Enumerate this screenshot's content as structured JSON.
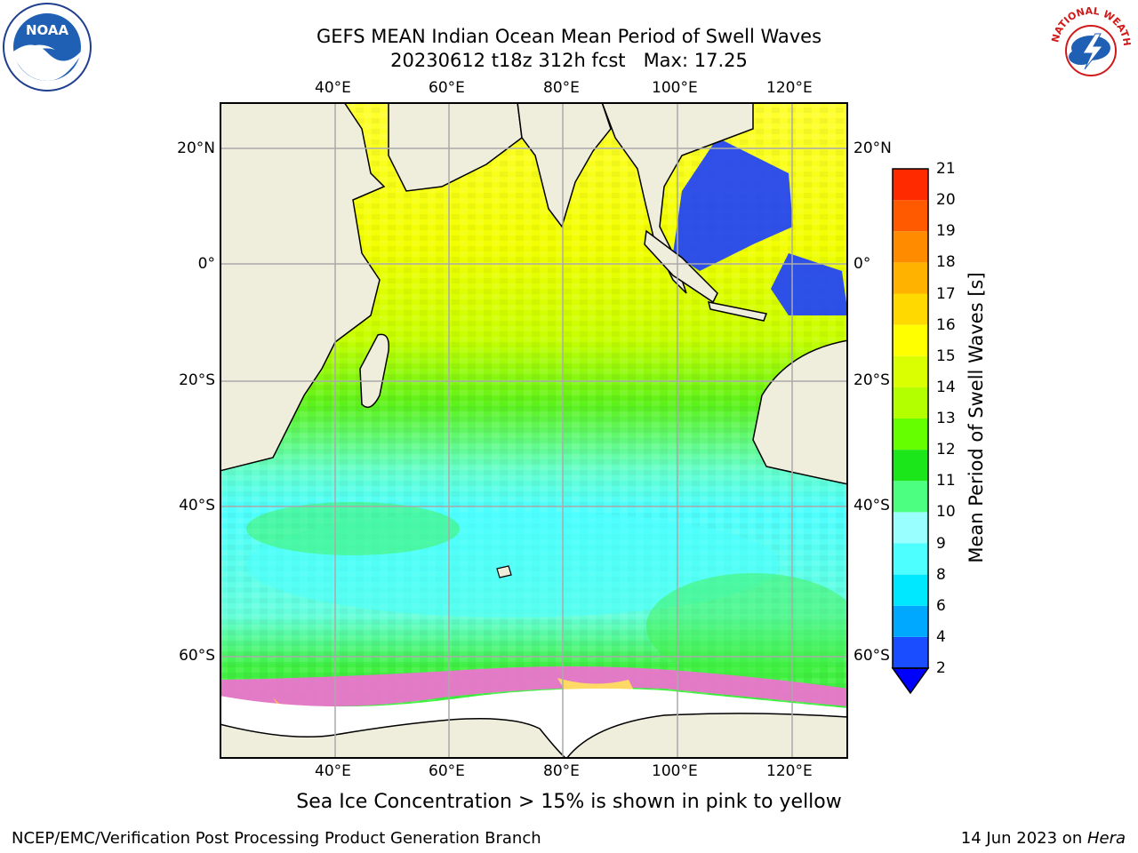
{
  "title": {
    "line1": "GEFS MEAN Indian Ocean Mean Period of Swell Waves",
    "line2": "20230612 t18z 312h fcst   Max: 17.25"
  },
  "map": {
    "lon_labels": [
      "40°E",
      "60°E",
      "80°E",
      "100°E",
      "120°E"
    ],
    "lat_labels": [
      "20°N",
      "0°",
      "20°S",
      "40°S",
      "60°S"
    ],
    "background_color": "#efeddc"
  },
  "colorbar": {
    "title": "Mean Period of Swell Waves [s]",
    "levels": [
      "2",
      "4",
      "6",
      "8",
      "9",
      "10",
      "11",
      "12",
      "13",
      "14",
      "15",
      "16",
      "17",
      "18",
      "19",
      "20",
      "21"
    ],
    "colors": [
      "#1a4dff",
      "#00a8ff",
      "#00e8ff",
      "#4dffff",
      "#99ffff",
      "#4dff80",
      "#1ae61a",
      "#66ff00",
      "#b3ff00",
      "#d9ff00",
      "#ffff00",
      "#ffd900",
      "#ffb300",
      "#ff8c00",
      "#ff5a00",
      "#ff2a00"
    ],
    "under_color": "#0000ff"
  },
  "caption": "Sea Ice Concentration > 15% is shown in pink to yellow",
  "footer": {
    "left": "NCEP/EMC/Verification Post Processing Product Generation Branch",
    "right_prefix": "14 Jun 2023 on ",
    "right_host": "Hera"
  },
  "logos": {
    "noaa_text": "NOAA",
    "nws_text": "NATIONAL WEATHER SERVICE"
  }
}
